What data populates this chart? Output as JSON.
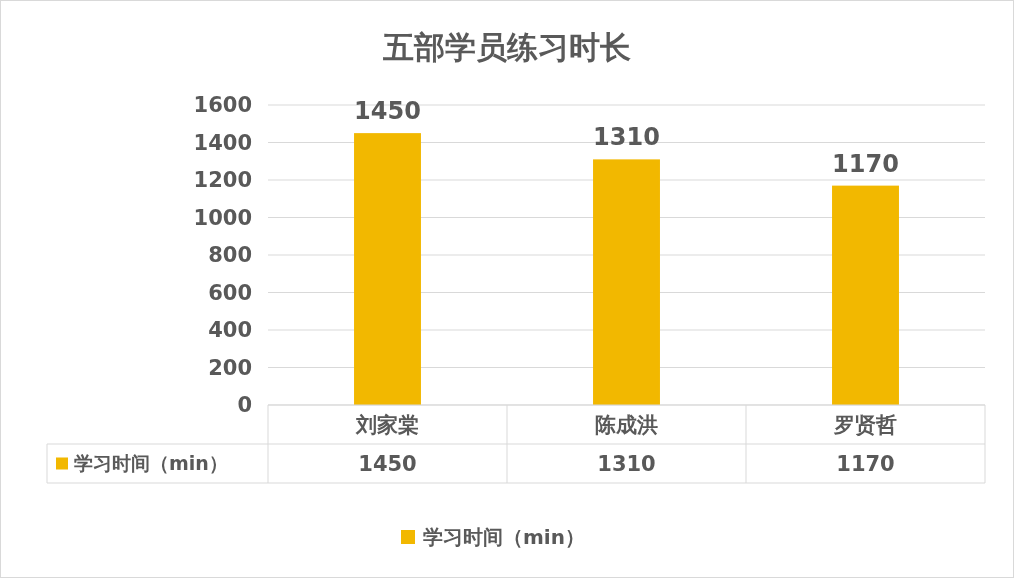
{
  "chart_data": {
    "type": "bar",
    "title": "五部学员练习时长",
    "categories": [
      "刘家棠",
      "陈成洪",
      "罗贤哲"
    ],
    "series": [
      {
        "name": "学习时间（min）",
        "color": "#f2b800",
        "values": [
          1450,
          1310,
          1170
        ],
        "value_labels": [
          "1450",
          "1310",
          "1170"
        ]
      }
    ],
    "ylim": [
      0,
      1600
    ],
    "yticks": [
      0,
      200,
      400,
      600,
      800,
      1000,
      1200,
      1400,
      1600
    ],
    "annotations": [
      "1450",
      "1310",
      "1170"
    ],
    "grid": "y",
    "legend": "bottom",
    "data_labels": true
  }
}
